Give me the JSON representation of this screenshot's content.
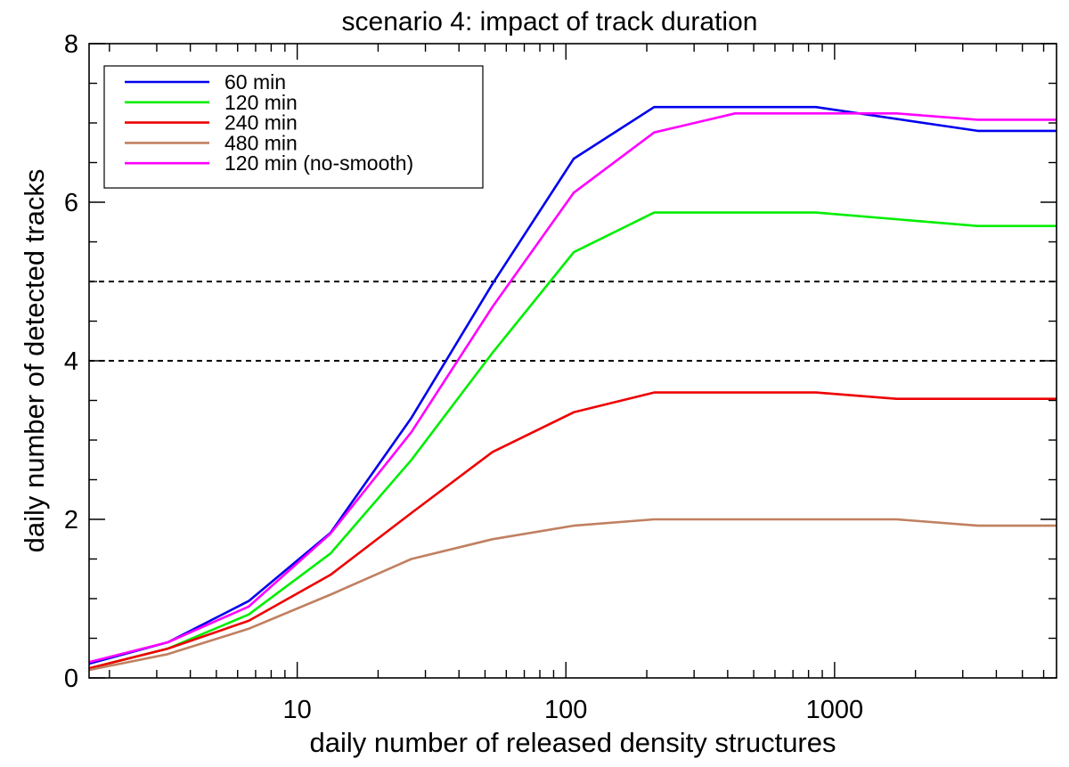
{
  "chart_data": {
    "type": "line",
    "title": "scenario 4: impact of track duration",
    "xlabel": "daily number of released density structures",
    "ylabel": "daily number of detected tracks",
    "xscale": "log",
    "xlim": [
      1.68,
      6700
    ],
    "ylim": [
      0,
      8
    ],
    "xticks": [
      {
        "value": 10,
        "label": "10"
      },
      {
        "value": 100,
        "label": "100"
      },
      {
        "value": 1000,
        "label": "1000"
      }
    ],
    "yticks": [
      {
        "value": 0,
        "label": "0"
      },
      {
        "value": 2,
        "label": "2"
      },
      {
        "value": 4,
        "label": "4"
      },
      {
        "value": 6,
        "label": "6"
      },
      {
        "value": 8,
        "label": "8"
      }
    ],
    "reference_lines": [
      4,
      5
    ],
    "legend_position": "top-left",
    "series": [
      {
        "name": "60 min",
        "color": "#0000ee",
        "x": [
          1.68,
          3.3,
          6.6,
          13.3,
          26.6,
          53.3,
          107,
          213,
          853,
          3410,
          6700
        ],
        "y": [
          0.18,
          0.45,
          0.97,
          1.83,
          3.28,
          4.97,
          6.55,
          7.2,
          7.2,
          6.9,
          6.9
        ]
      },
      {
        "name": "120 min",
        "color": "#00ee00",
        "x": [
          1.68,
          3.3,
          6.6,
          13.3,
          26.6,
          53.3,
          107,
          213,
          853,
          3410,
          6700
        ],
        "y": [
          0.12,
          0.37,
          0.8,
          1.57,
          2.75,
          4.1,
          5.37,
          5.87,
          5.87,
          5.7,
          5.7
        ]
      },
      {
        "name": "240 min",
        "color": "#ee0000",
        "x": [
          1.68,
          3.3,
          6.6,
          13.3,
          26.6,
          53.3,
          107,
          213,
          853,
          1700,
          6700
        ],
        "y": [
          0.12,
          0.37,
          0.72,
          1.3,
          2.08,
          2.85,
          3.35,
          3.6,
          3.6,
          3.52,
          3.52
        ]
      },
      {
        "name": "480 min",
        "color": "#c08060",
        "x": [
          1.68,
          3.3,
          6.6,
          13.3,
          26.6,
          53.3,
          107,
          213,
          853,
          1700,
          3410,
          6700
        ],
        "y": [
          0.1,
          0.3,
          0.62,
          1.05,
          1.5,
          1.75,
          1.92,
          2.0,
          2.0,
          2.0,
          1.92,
          1.92
        ]
      },
      {
        "name": "120 min (no-smooth)",
        "color": "#ff00ff",
        "x": [
          1.68,
          3.3,
          6.6,
          13.3,
          26.6,
          53.3,
          107,
          213,
          426,
          1700,
          3410,
          6700
        ],
        "y": [
          0.2,
          0.45,
          0.9,
          1.82,
          3.1,
          4.68,
          6.12,
          6.88,
          7.12,
          7.12,
          7.04,
          7.04
        ]
      }
    ]
  }
}
